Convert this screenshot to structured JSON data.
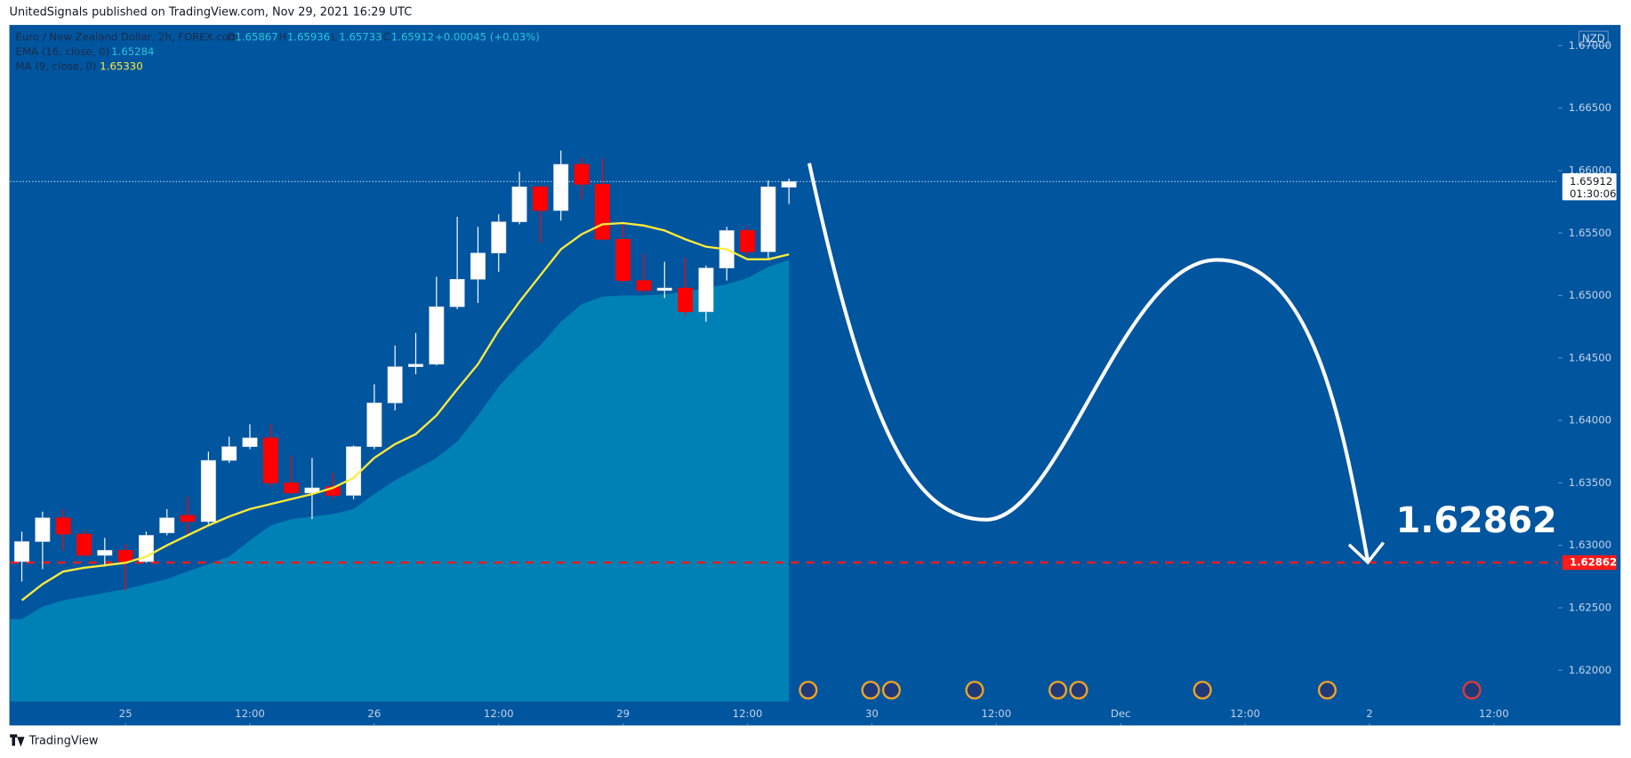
{
  "header": "UnitedSignals published on TradingView.com, Nov 29, 2021 16:29 UTC",
  "footer": "TradingView",
  "chart_data": {
    "type": "candlestick",
    "title": "Euro / New Zealand Dollar, 2h, FOREX.com",
    "currency": "NZD",
    "legend_keys": [
      "O",
      "H",
      "L",
      "C"
    ],
    "change": "+0.00045 (+0.03%)",
    "up_color": "#ffffff",
    "down_color": "#ff0000",
    "open": [
      1.6287,
      1.6303,
      1.6322,
      1.6309,
      1.6292,
      1.6296,
      1.6287,
      1.631,
      1.6324,
      1.6319,
      1.6368,
      1.6379,
      1.6386,
      1.635,
      1.6342,
      1.6347,
      1.634,
      1.6379,
      1.6414,
      1.6443,
      1.6445,
      1.6491,
      1.6513,
      1.6534,
      1.6559,
      1.6587,
      1.6568,
      1.6605,
      1.6589,
      1.6545,
      1.6512,
      1.6504,
      1.6506,
      1.6487,
      1.6522,
      1.6552,
      1.6535,
      1.65867
    ],
    "high": [
      1.6311,
      1.6327,
      1.6329,
      1.6312,
      1.6306,
      1.6301,
      1.6311,
      1.6329,
      1.6339,
      1.6375,
      1.6387,
      1.6397,
      1.6397,
      1.6372,
      1.637,
      1.6358,
      1.638,
      1.6429,
      1.646,
      1.647,
      1.6515,
      1.6563,
      1.6555,
      1.6565,
      1.6599,
      1.6588,
      1.6616,
      1.661,
      1.661,
      1.6558,
      1.6533,
      1.6527,
      1.653,
      1.6524,
      1.6555,
      1.6555,
      1.6592,
      1.65936
    ],
    "low": [
      1.6271,
      1.6281,
      1.6296,
      1.6291,
      1.6283,
      1.6264,
      1.6286,
      1.6308,
      1.6308,
      1.6317,
      1.6366,
      1.6377,
      1.6347,
      1.6341,
      1.6321,
      1.6337,
      1.6337,
      1.6377,
      1.6408,
      1.6437,
      1.6444,
      1.6489,
      1.6494,
      1.6519,
      1.6557,
      1.6542,
      1.656,
      1.6577,
      1.6544,
      1.651,
      1.6502,
      1.6498,
      1.6484,
      1.6479,
      1.6512,
      1.6532,
      1.653,
      1.65733
    ],
    "close": [
      1.6303,
      1.6322,
      1.6309,
      1.6292,
      1.6296,
      1.6287,
      1.6308,
      1.6322,
      1.6319,
      1.6368,
      1.6379,
      1.6386,
      1.635,
      1.6342,
      1.6346,
      1.634,
      1.6379,
      1.6414,
      1.6443,
      1.6445,
      1.6491,
      1.6513,
      1.6534,
      1.6559,
      1.6587,
      1.6568,
      1.6605,
      1.6589,
      1.6545,
      1.6512,
      1.6504,
      1.6506,
      1.6487,
      1.6522,
      1.6552,
      1.6535,
      1.6587,
      1.65912
    ],
    "indicators": [
      {
        "name": "EMA (16, close, 0)",
        "style": "area",
        "color": "#26c6da",
        "fill": "#0081b6",
        "last_label": "1.65284",
        "values": [
          1.6241,
          1.6251,
          1.6256,
          1.6259,
          1.6262,
          1.6265,
          1.6269,
          1.6273,
          1.6279,
          1.6285,
          1.6291,
          1.6304,
          1.6316,
          1.6321,
          1.6323,
          1.6325,
          1.6329,
          1.6341,
          1.6352,
          1.6361,
          1.637,
          1.6383,
          1.6404,
          1.6427,
          1.6445,
          1.646,
          1.6479,
          1.6493,
          1.6499,
          1.65,
          1.65,
          1.6501,
          1.6503,
          1.6506,
          1.6509,
          1.6514,
          1.6523,
          1.65284
        ]
      },
      {
        "name": "MA (9, close, 0)",
        "style": "line",
        "color": "#ffeb3b",
        "last_label": "1.65330",
        "values": [
          1.6256,
          1.6269,
          1.6279,
          1.6282,
          1.6284,
          1.6286,
          1.6291,
          1.63,
          1.6308,
          1.6316,
          1.6323,
          1.6329,
          1.6333,
          1.6337,
          1.6341,
          1.6346,
          1.6354,
          1.637,
          1.6381,
          1.6389,
          1.6404,
          1.6425,
          1.6445,
          1.6472,
          1.6495,
          1.6516,
          1.6537,
          1.6549,
          1.6557,
          1.6558,
          1.6556,
          1.6552,
          1.6545,
          1.6539,
          1.6537,
          1.6529,
          1.6529,
          1.6533
        ]
      }
    ],
    "price_line": {
      "value": 1.65912,
      "label": "1.65912",
      "countdown": "01:30:06"
    },
    "target": {
      "value": 1.62862,
      "label": "1.62862",
      "color": "#ff1a1a"
    },
    "xlim": [
      -0.55,
      74.1
    ],
    "xticks": [
      {
        "value": 5,
        "label": "25"
      },
      {
        "value": 11,
        "label": "12:00"
      },
      {
        "value": 17,
        "label": "26"
      },
      {
        "value": 23,
        "label": "12:00"
      },
      {
        "value": 29,
        "label": "29"
      },
      {
        "value": 35,
        "label": "12:00"
      },
      {
        "value": 41,
        "label": "30"
      },
      {
        "value": 47,
        "label": "12:00"
      },
      {
        "value": 53,
        "label": "Dec"
      },
      {
        "value": 59,
        "label": "12:00"
      },
      {
        "value": 65,
        "label": "2"
      },
      {
        "value": 71,
        "label": "12:00"
      }
    ],
    "ylim": [
      1.61558,
      1.67166
    ],
    "yticks": [
      {
        "value": 1.62,
        "label": "1.62000"
      },
      {
        "value": 1.625,
        "label": "1.62500"
      },
      {
        "value": 1.63,
        "label": "1.63000"
      },
      {
        "value": 1.635,
        "label": "1.63500"
      },
      {
        "value": 1.64,
        "label": "1.64000"
      },
      {
        "value": 1.645,
        "label": "1.64500"
      },
      {
        "value": 1.65,
        "label": "1.65000"
      },
      {
        "value": 1.655,
        "label": "1.65500"
      },
      {
        "value": 1.66,
        "label": "1.66000"
      },
      {
        "value": 1.665,
        "label": "1.66500"
      },
      {
        "value": 1.67,
        "label": "1.67000"
      }
    ]
  }
}
